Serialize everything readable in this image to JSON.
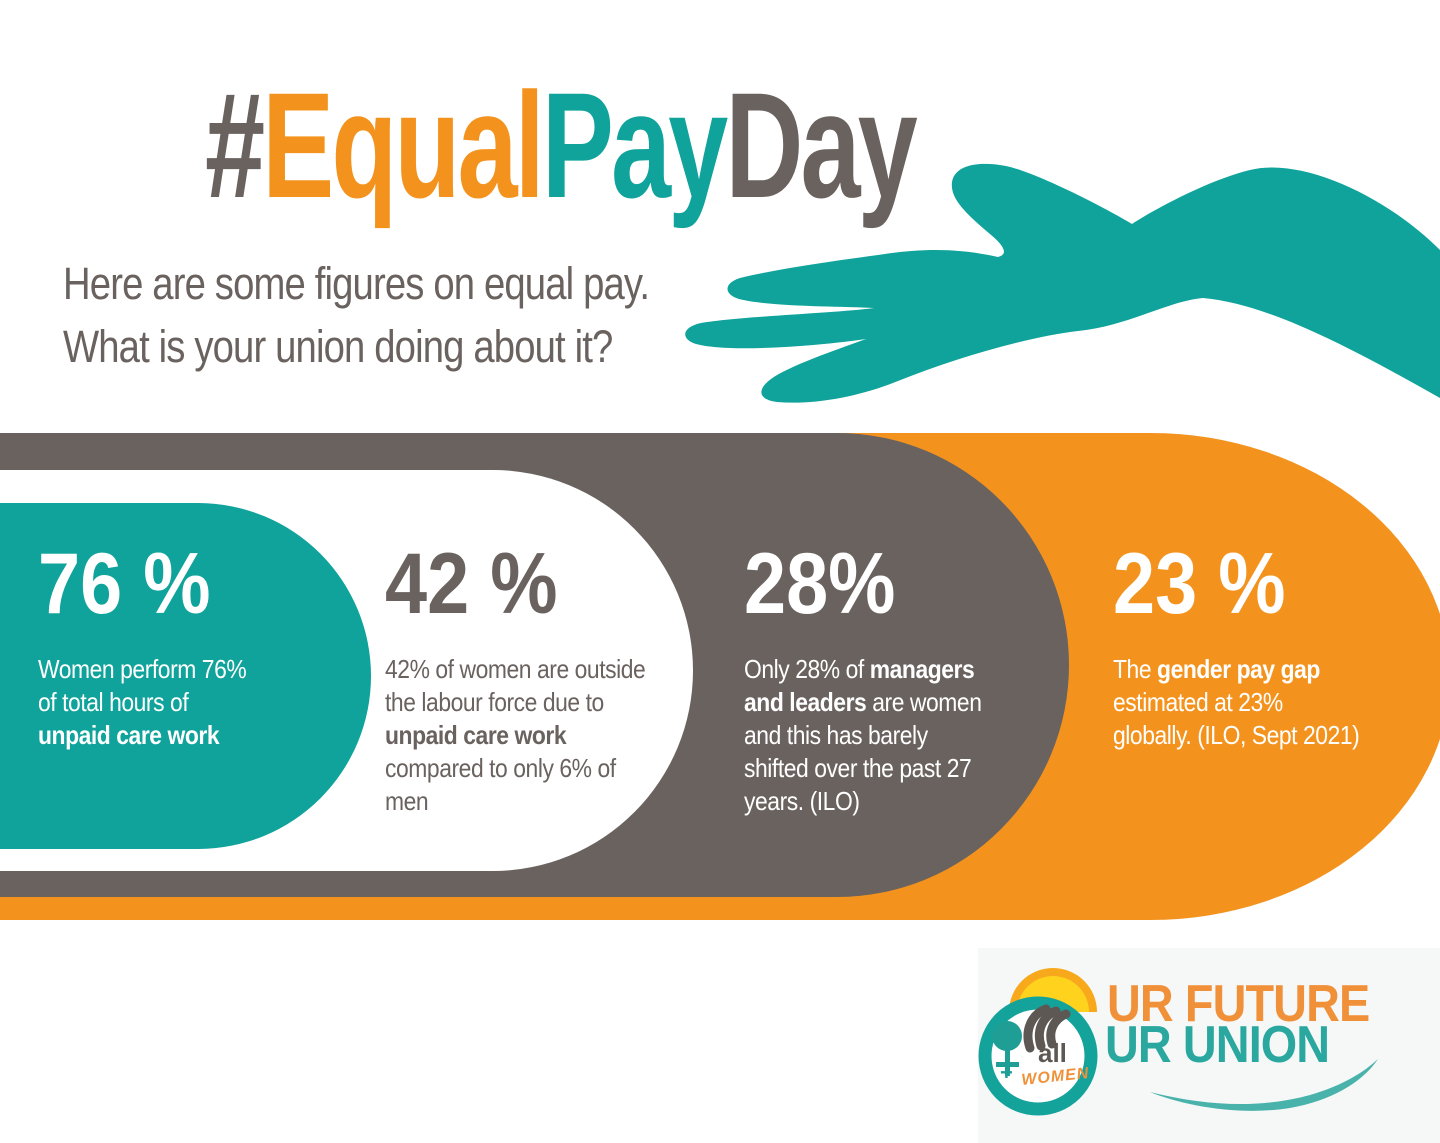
{
  "title": {
    "hash": "#",
    "equal": "Equal",
    "pay": "Pay",
    "day": "Day"
  },
  "subtitle": {
    "line1": "Here are some figures on equal pay.",
    "line2": "What is your union doing about it?"
  },
  "stats": [
    {
      "value": "76 %",
      "theme": "teal",
      "lines": [
        [
          {
            "t": "Women perform 76%"
          }
        ],
        [
          {
            "t": "of total hours of"
          }
        ],
        [
          {
            "t": "unpaid care work",
            "b": true
          }
        ]
      ]
    },
    {
      "value": "42 %",
      "theme": "white",
      "lines": [
        [
          {
            "t": "42% of women are outside"
          }
        ],
        [
          {
            "t": "the labour force due to"
          }
        ],
        [
          {
            "t": "unpaid care work",
            "b": true
          }
        ],
        [
          {
            "t": "compared to only 6% of"
          }
        ],
        [
          {
            "t": "men"
          }
        ]
      ]
    },
    {
      "value": "28%",
      "theme": "gray",
      "lines": [
        [
          {
            "t": "Only 28% of "
          },
          {
            "t": "managers",
            "b": true
          }
        ],
        [
          {
            "t": "and leaders",
            "b": true
          },
          {
            "t": " are women"
          }
        ],
        [
          {
            "t": "and this has barely"
          }
        ],
        [
          {
            "t": "shifted over the past 27"
          }
        ],
        [
          {
            "t": "years. (ILO)"
          }
        ]
      ]
    },
    {
      "value": "23 %",
      "theme": "orange",
      "lines": [
        [
          {
            "t": "The "
          },
          {
            "t": "gender pay gap",
            "b": true
          }
        ],
        [
          {
            "t": "estimated at 23%"
          }
        ],
        [
          {
            "t": "globally. (ILO, Sept 2021)"
          }
        ]
      ]
    }
  ],
  "logo": {
    "line1": "UR FUTURE",
    "line2": "UR UNION",
    "emblem_all": "all",
    "emblem_plus": "+",
    "emblem_women": "WOMEN",
    "female_symbol": "♀"
  },
  "colors": {
    "teal": "#0fa39b",
    "orange": "#f3931e",
    "warm_gray": "#6a625f",
    "logo_panel_bg": "#f6f7f7",
    "sun_yellow": "#ffd21e",
    "sun_rim_orange": "#f7a81b",
    "logo_future_orange": "#f0913a",
    "logo_union_teal": "#2aa79e",
    "emblem_face_gray": "#5d5854"
  }
}
